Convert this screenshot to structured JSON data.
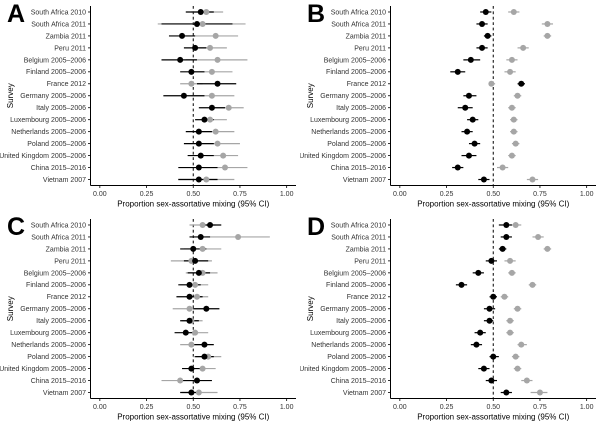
{
  "figure": {
    "background": "#ffffff",
    "axis_color": "#000000",
    "tick_text_color": "#333333",
    "title_text_color": "#000000"
  },
  "chart_data": [
    {
      "type": "scatter",
      "panel": "A",
      "xlabel": "Proportion sex-assortative mixing (95% CI)",
      "ylabel": "Survey",
      "xlim": [
        0,
        1
      ],
      "x_ticks": [
        0,
        0.25,
        0.5,
        0.75,
        1
      ],
      "x_tick_labels": [
        "0.00",
        "0.25",
        "0.50",
        "0.75",
        "1.00"
      ],
      "reference_line_x": 0.5,
      "grid": false,
      "legend": "none",
      "categories": [
        "South Africa 2010",
        "South Africa 2011",
        "Zambia 2011",
        "Peru 2011",
        "Belgium 2005–2006",
        "Finland 2005–2006",
        "France 2012",
        "Germany 2005–2006",
        "Italy 2005–2006",
        "Luxembourg 2005–2006",
        "Netherlands 2005–2006",
        "Poland 2005–2006",
        "United Kingdom 2005–2006",
        "China 2015–2016",
        "Vietnam 2007"
      ],
      "series": [
        {
          "name": "estimate-black",
          "color": "#000000",
          "values": [
            0.54,
            0.52,
            0.44,
            0.51,
            0.43,
            0.49,
            0.63,
            0.45,
            0.6,
            0.56,
            0.53,
            0.53,
            0.54,
            0.53,
            0.53
          ],
          "ci_low": [
            0.46,
            0.33,
            0.37,
            0.45,
            0.33,
            0.43,
            0.52,
            0.34,
            0.53,
            0.51,
            0.46,
            0.45,
            0.47,
            0.42,
            0.42
          ],
          "ci_high": [
            0.61,
            0.71,
            0.51,
            0.57,
            0.52,
            0.56,
            0.73,
            0.56,
            0.67,
            0.61,
            0.6,
            0.61,
            0.61,
            0.63,
            0.63
          ]
        },
        {
          "name": "estimate-gray",
          "color": "#a6a6a6",
          "values": [
            0.57,
            0.55,
            0.62,
            0.59,
            0.63,
            0.6,
            0.49,
            0.6,
            0.69,
            0.59,
            0.62,
            0.63,
            0.66,
            0.67,
            0.57
          ],
          "ci_low": [
            0.49,
            0.31,
            0.5,
            0.51,
            0.46,
            0.5,
            0.43,
            0.49,
            0.61,
            0.51,
            0.5,
            0.52,
            0.57,
            0.55,
            0.42
          ],
          "ci_high": [
            0.66,
            0.78,
            0.74,
            0.68,
            0.79,
            0.71,
            0.55,
            0.72,
            0.77,
            0.68,
            0.72,
            0.75,
            0.74,
            0.79,
            0.72
          ]
        }
      ]
    },
    {
      "type": "scatter",
      "panel": "B",
      "xlabel": "Proportion sex-assortative mixing (95% CI)",
      "ylabel": "Survey",
      "xlim": [
        0,
        1
      ],
      "x_ticks": [
        0,
        0.25,
        0.5,
        0.75,
        1
      ],
      "x_tick_labels": [
        "0.00",
        "0.25",
        "0.50",
        "0.75",
        "1.00"
      ],
      "reference_line_x": 0.5,
      "grid": false,
      "legend": "none",
      "categories": [
        "South Africa 2010",
        "South Africa 2011",
        "Zambia 2011",
        "Peru 2011",
        "Belgium 2005–2006",
        "Finland 2005–2006",
        "France 2012",
        "Germany 2005–2006",
        "Italy 2005–2006",
        "Luxembourg 2005–2006",
        "Netherlands 2005–2006",
        "Poland 2005–2006",
        "United Kingdom 2005–2006",
        "China 2015–2016",
        "Vietnam 2007"
      ],
      "series": [
        {
          "name": "estimate-black",
          "color": "#000000",
          "values": [
            0.46,
            0.44,
            0.47,
            0.44,
            0.38,
            0.31,
            0.65,
            0.37,
            0.35,
            0.39,
            0.36,
            0.4,
            0.37,
            0.31,
            0.45
          ],
          "ci_low": [
            0.43,
            0.41,
            0.45,
            0.41,
            0.34,
            0.27,
            0.63,
            0.34,
            0.31,
            0.36,
            0.33,
            0.37,
            0.33,
            0.28,
            0.42
          ],
          "ci_high": [
            0.49,
            0.47,
            0.49,
            0.47,
            0.43,
            0.35,
            0.67,
            0.41,
            0.39,
            0.42,
            0.39,
            0.43,
            0.41,
            0.34,
            0.48
          ]
        },
        {
          "name": "estimate-gray",
          "color": "#a6a6a6",
          "values": [
            0.61,
            0.79,
            0.79,
            0.66,
            0.6,
            0.59,
            0.49,
            0.63,
            0.6,
            0.61,
            0.61,
            0.62,
            0.6,
            0.55,
            0.71
          ],
          "ci_low": [
            0.58,
            0.76,
            0.77,
            0.63,
            0.57,
            0.56,
            0.48,
            0.61,
            0.58,
            0.59,
            0.59,
            0.6,
            0.58,
            0.52,
            0.68
          ],
          "ci_high": [
            0.64,
            0.82,
            0.81,
            0.69,
            0.63,
            0.62,
            0.51,
            0.65,
            0.62,
            0.63,
            0.63,
            0.64,
            0.62,
            0.58,
            0.74
          ]
        }
      ]
    },
    {
      "type": "scatter",
      "panel": "C",
      "xlabel": "Proportion sex-assortative mixing (95% CI)",
      "ylabel": "Survey",
      "xlim": [
        0,
        1
      ],
      "x_ticks": [
        0,
        0.25,
        0.5,
        0.75,
        1
      ],
      "x_tick_labels": [
        "0.00",
        "0.25",
        "0.50",
        "0.75",
        "1.00"
      ],
      "reference_line_x": 0.5,
      "grid": false,
      "legend": "none",
      "categories": [
        "South Africa 2010",
        "South Africa 2011",
        "Zambia 2011",
        "Peru 2011",
        "Belgium 2005–2006",
        "Finland 2005–2006",
        "France 2012",
        "Germany 2005–2006",
        "Italy 2005–2006",
        "Luxembourg 2005–2006",
        "Netherlands 2005–2006",
        "Poland 2005–2006",
        "United Kingdom 2005–2006",
        "China 2015–2016",
        "Vietnam 2007"
      ],
      "series": [
        {
          "name": "estimate-black",
          "color": "#000000",
          "values": [
            0.59,
            0.54,
            0.5,
            0.51,
            0.53,
            0.48,
            0.48,
            0.57,
            0.48,
            0.46,
            0.56,
            0.56,
            0.49,
            0.52,
            0.49
          ],
          "ci_low": [
            0.54,
            0.48,
            0.43,
            0.45,
            0.47,
            0.42,
            0.41,
            0.5,
            0.43,
            0.4,
            0.5,
            0.51,
            0.44,
            0.44,
            0.43
          ],
          "ci_high": [
            0.65,
            0.59,
            0.57,
            0.58,
            0.59,
            0.54,
            0.55,
            0.64,
            0.53,
            0.51,
            0.61,
            0.61,
            0.54,
            0.6,
            0.54
          ]
        },
        {
          "name": "estimate-gray",
          "color": "#a6a6a6",
          "values": [
            0.55,
            0.74,
            0.55,
            0.49,
            0.55,
            0.51,
            0.52,
            0.48,
            0.49,
            0.51,
            0.49,
            0.58,
            0.55,
            0.43,
            0.53
          ],
          "ci_low": [
            0.48,
            0.57,
            0.45,
            0.38,
            0.46,
            0.43,
            0.46,
            0.39,
            0.44,
            0.45,
            0.43,
            0.5,
            0.48,
            0.33,
            0.44
          ],
          "ci_high": [
            0.62,
            0.91,
            0.65,
            0.6,
            0.63,
            0.58,
            0.58,
            0.57,
            0.55,
            0.58,
            0.55,
            0.65,
            0.62,
            0.53,
            0.63
          ]
        }
      ]
    },
    {
      "type": "scatter",
      "panel": "D",
      "xlabel": "Proportion sex-assortative mixing (95% CI)",
      "ylabel": "Survey",
      "xlim": [
        0,
        1
      ],
      "x_ticks": [
        0,
        0.25,
        0.5,
        0.75,
        1
      ],
      "x_tick_labels": [
        "0.00",
        "0.25",
        "0.50",
        "0.75",
        "1.00"
      ],
      "reference_line_x": 0.5,
      "grid": false,
      "legend": "none",
      "categories": [
        "South Africa 2010",
        "South Africa 2011",
        "Zambia 2011",
        "Peru 2011",
        "Belgium 2005–2006",
        "Finland 2005–2006",
        "France 2012",
        "Germany 2005–2006",
        "Italy 2005–2006",
        "Luxembourg 2005–2006",
        "Netherlands 2005–2006",
        "Poland 2005–2006",
        "United Kingdom 2005–2006",
        "China 2015–2016",
        "Vietnam 2007"
      ],
      "series": [
        {
          "name": "estimate-black",
          "color": "#000000",
          "values": [
            0.57,
            0.57,
            0.55,
            0.49,
            0.42,
            0.33,
            0.5,
            0.48,
            0.48,
            0.43,
            0.41,
            0.5,
            0.45,
            0.49,
            0.57
          ],
          "ci_low": [
            0.53,
            0.54,
            0.53,
            0.46,
            0.39,
            0.3,
            0.48,
            0.45,
            0.45,
            0.4,
            0.38,
            0.48,
            0.42,
            0.46,
            0.54
          ],
          "ci_high": [
            0.6,
            0.6,
            0.57,
            0.52,
            0.45,
            0.36,
            0.52,
            0.51,
            0.5,
            0.46,
            0.44,
            0.53,
            0.48,
            0.52,
            0.6
          ]
        },
        {
          "name": "estimate-gray",
          "color": "#a6a6a6",
          "values": [
            0.62,
            0.74,
            0.79,
            0.59,
            0.6,
            0.71,
            0.56,
            0.63,
            0.59,
            0.59,
            0.65,
            0.62,
            0.63,
            0.68,
            0.75
          ],
          "ci_low": [
            0.59,
            0.71,
            0.77,
            0.56,
            0.58,
            0.69,
            0.54,
            0.61,
            0.57,
            0.57,
            0.63,
            0.6,
            0.61,
            0.65,
            0.7
          ],
          "ci_high": [
            0.65,
            0.77,
            0.81,
            0.62,
            0.62,
            0.73,
            0.58,
            0.65,
            0.61,
            0.61,
            0.68,
            0.64,
            0.65,
            0.71,
            0.79
          ]
        }
      ]
    }
  ]
}
